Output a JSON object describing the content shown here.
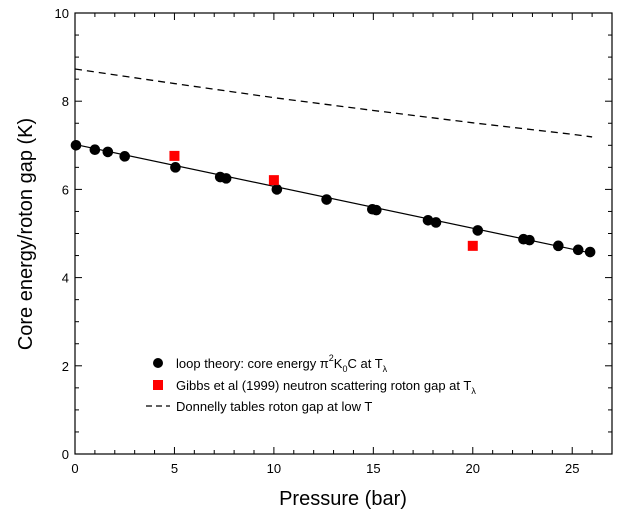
{
  "chart_data": {
    "type": "scatter",
    "xlabel": "Pressure (bar)",
    "ylabel": "Core energy/roton gap (K)",
    "xlim": [
      0,
      27
    ],
    "ylim": [
      0,
      10
    ],
    "x_ticks": [
      0,
      5,
      10,
      15,
      20,
      25
    ],
    "y_ticks": [
      0,
      2,
      4,
      6,
      8,
      10
    ],
    "grid": false,
    "legend_position": "bottom-center",
    "series": [
      {
        "name": "loop theory: core energy π²K₀C at Tλ",
        "legend_text": "loop theory: core energy π",
        "legend_sup": "2",
        "legend_mid": "K",
        "legend_sub1": "0",
        "legend_after": "C at T",
        "legend_sub2": "λ",
        "marker": "circle",
        "color": "#000000",
        "x": [
          0.05,
          1.0,
          1.65,
          2.5,
          5.05,
          7.3,
          7.6,
          10.15,
          12.65,
          14.95,
          15.15,
          17.75,
          18.15,
          20.25,
          22.55,
          22.85,
          24.3,
          25.3,
          25.9
        ],
        "y": [
          7.0,
          6.9,
          6.85,
          6.75,
          6.5,
          6.28,
          6.25,
          6.0,
          5.77,
          5.55,
          5.53,
          5.3,
          5.25,
          5.07,
          4.87,
          4.85,
          4.72,
          4.63,
          4.58
        ]
      },
      {
        "name": "Gibbs et al (1999) neutron scattering roton gap at Tλ",
        "legend_text": "Gibbs et al (1999) neutron scattering roton gap at T",
        "legend_sub": "λ",
        "marker": "square",
        "color": "#ff0000",
        "x": [
          5,
          10,
          20
        ],
        "y": [
          6.76,
          6.21,
          4.72
        ]
      },
      {
        "name": "Donnelly tables roton gap at low T",
        "legend_text": "Donnelly tables roton gap at low T",
        "style": "dashed",
        "color": "#000000",
        "x": [
          0,
          5,
          10,
          15,
          20,
          25,
          26
        ],
        "y": [
          8.73,
          8.4,
          8.08,
          7.79,
          7.51,
          7.25,
          7.19
        ]
      }
    ],
    "fit_line": {
      "style": "solid",
      "color": "#000000",
      "x": [
        0,
        26
      ],
      "y": [
        7.02,
        4.55
      ]
    }
  }
}
